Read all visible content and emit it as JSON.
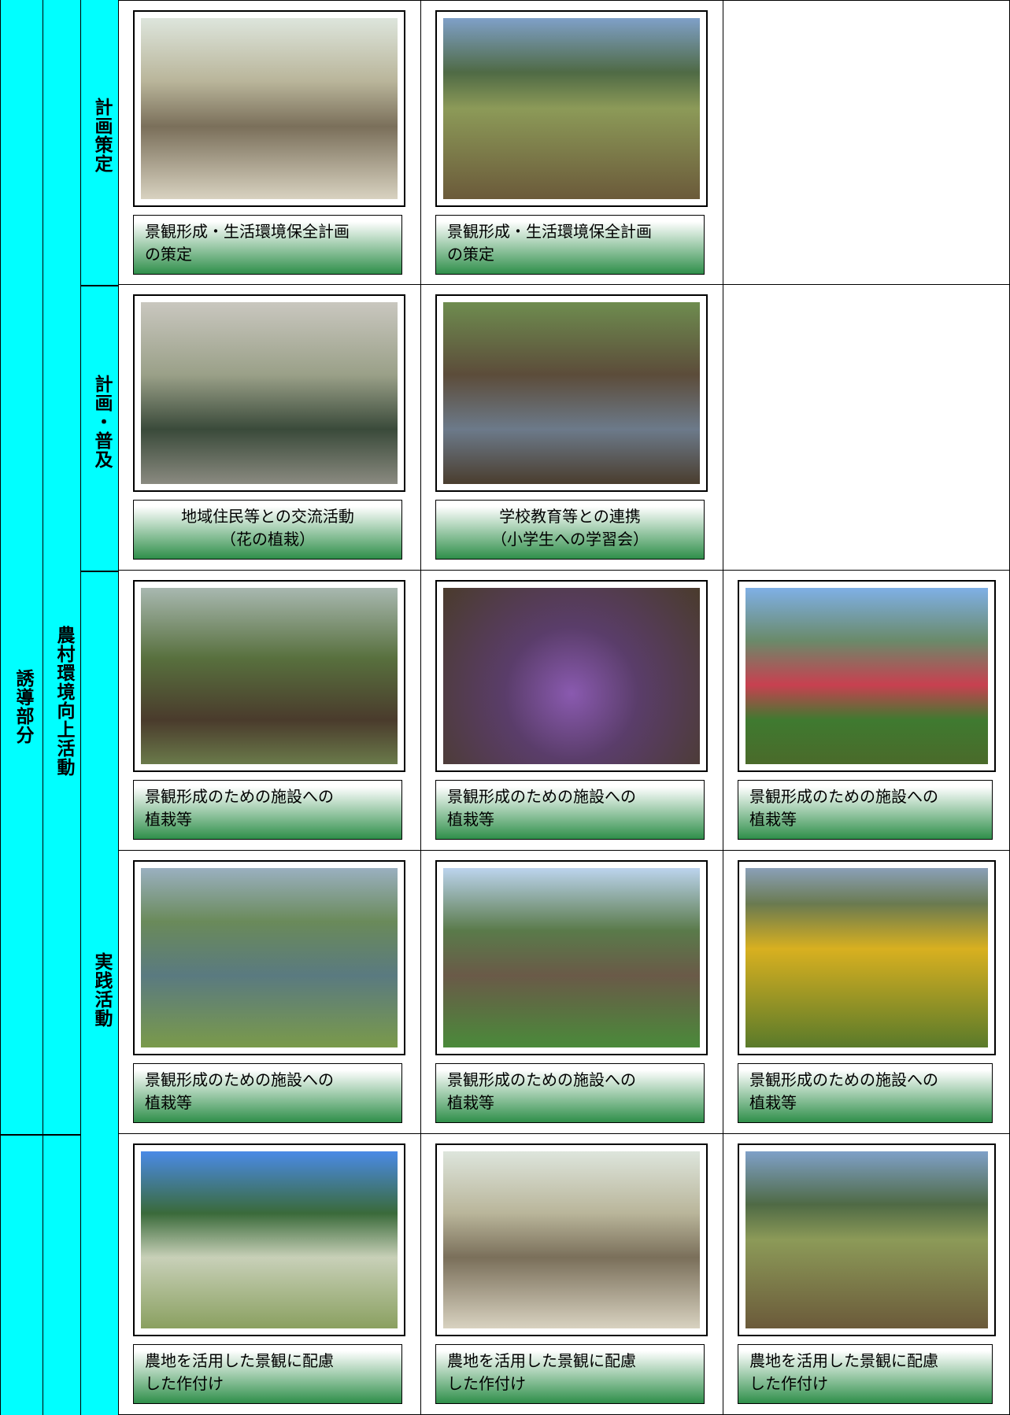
{
  "labels": {
    "section": "誘導部分",
    "activity": "農村環境向上活動",
    "phases": [
      "計画策定",
      "計画・普及",
      "実践活動"
    ]
  },
  "rows": [
    [
      [
        "景観形成・生活環境保全計画",
        "の策定"
      ],
      [
        "景観形成・生活環境保全計画",
        "の策定"
      ]
    ],
    [
      [
        "地域住民等との交流活動",
        "（花の植栽）"
      ],
      [
        "学校教育等との連携",
        "（小学生への学習会）"
      ]
    ],
    [
      [
        "景観形成のための施設への",
        "植栽等"
      ],
      [
        "景観形成のための施設への",
        "植栽等"
      ],
      [
        "景観形成のための施設への",
        "植栽等"
      ]
    ],
    [
      [
        "景観形成のための施設への",
        "植栽等"
      ],
      [
        "景観形成のための施設への",
        "植栽等"
      ],
      [
        "景観形成のための施設への",
        "植栽等"
      ]
    ],
    [
      [
        "農地を活用した景観に配慮",
        "した作付け"
      ],
      [
        "農地を活用した景観に配慮",
        "した作付け"
      ],
      [
        "農地を活用した景観に配慮",
        "した作付け"
      ]
    ]
  ]
}
